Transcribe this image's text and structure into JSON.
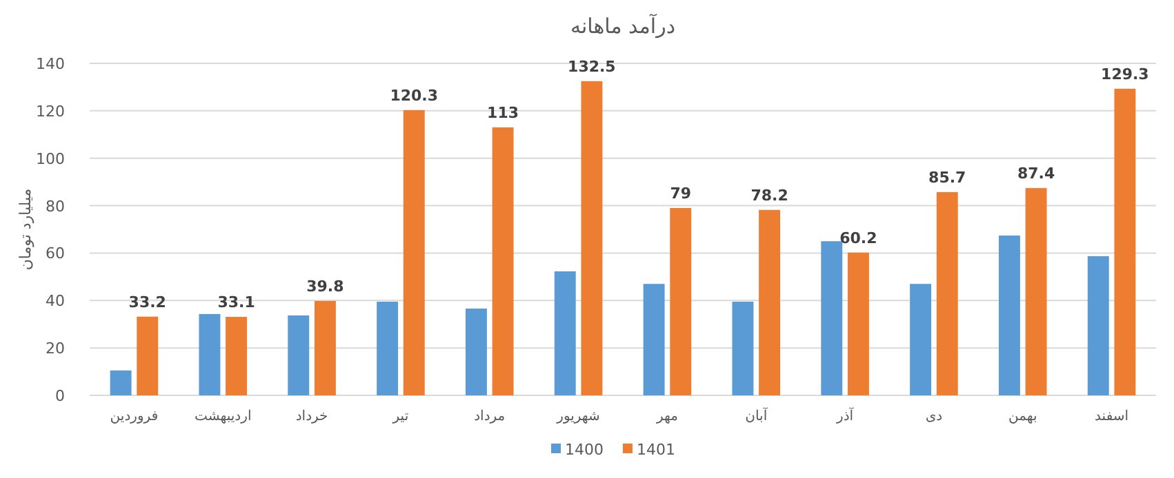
{
  "chart_data": {
    "type": "bar",
    "title": "درآمد ماهانه",
    "ylabel": "میلیارد تومان",
    "categories": [
      "فروردین",
      "اردیبهشت",
      "خرداد",
      "تیر",
      "مرداد",
      "شهریور",
      "مهر",
      "آبان",
      "آذر",
      "دی",
      "بهمن",
      "اسفند"
    ],
    "series": [
      {
        "name": "1400",
        "color": "#5b9bd5",
        "values": [
          10.5,
          34.3,
          33.7,
          39.5,
          36.6,
          52.3,
          47,
          39.5,
          65,
          47,
          67.4,
          58.7
        ]
      },
      {
        "name": "1401",
        "color": "#ed7d31",
        "values": [
          33.2,
          33.1,
          39.8,
          120.3,
          113,
          132.5,
          79,
          78.2,
          60.2,
          85.7,
          87.4,
          129.3
        ],
        "value_labels": [
          "33.2",
          "33.1",
          "39.8",
          "120.3",
          "113",
          "132.5",
          "79",
          "78.2",
          "60.2",
          "85.7",
          "87.4",
          "129.3"
        ]
      }
    ],
    "ylim": [
      0,
      140
    ],
    "yticks": [
      0,
      20,
      40,
      60,
      80,
      100,
      120,
      140
    ],
    "grid": "y",
    "legend": "bottom"
  }
}
